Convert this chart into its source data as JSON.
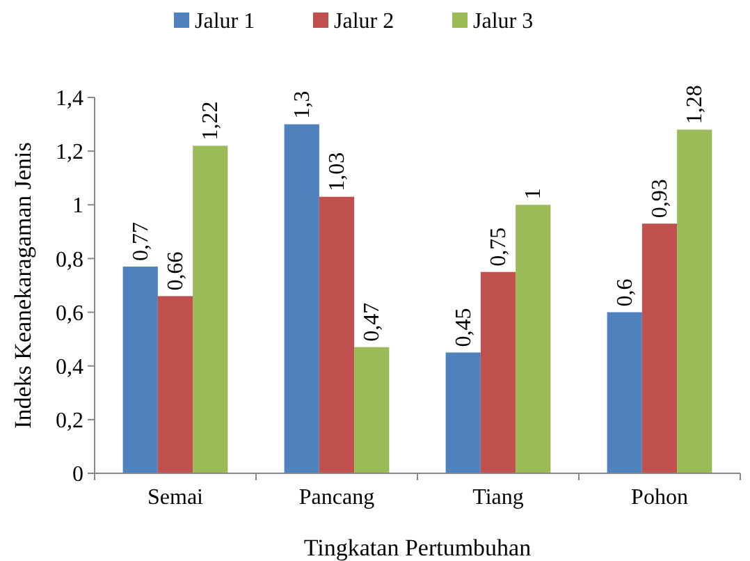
{
  "chart_data": {
    "type": "bar",
    "xlabel": "Tingkatan Pertumbuhan",
    "ylabel": "Indeks Keanekaragaman Jenis",
    "categories": [
      "Semai",
      "Pancang",
      "Tiang",
      "Pohon"
    ],
    "series": [
      {
        "name": "Jalur 1",
        "color": "#4f81bd",
        "values": [
          0.77,
          1.3,
          0.45,
          0.6
        ],
        "value_labels": [
          "0,77",
          "1,3",
          "0,45",
          "0,6"
        ]
      },
      {
        "name": "Jalur 2",
        "color": "#c0504d",
        "values": [
          0.66,
          1.03,
          0.75,
          0.93
        ],
        "value_labels": [
          "0,66",
          "1,03",
          "0,75",
          "0,93"
        ]
      },
      {
        "name": "Jalur 3",
        "color": "#9bbb59",
        "values": [
          1.22,
          0.47,
          1,
          1.28
        ],
        "value_labels": [
          "1,22",
          "0,47",
          "1",
          "1,28"
        ]
      }
    ],
    "ylim": [
      0,
      1.4
    ],
    "yticks": [
      0,
      {
        "value": 0.2,
        "label": "0,2"
      },
      {
        "value": 0.4,
        "label": "0,4"
      },
      {
        "value": 0.6,
        "label": "0,6"
      },
      {
        "value": 0.8,
        "label": "0,8"
      },
      1,
      {
        "value": 1.2,
        "label": "1,2"
      },
      {
        "value": 1.4,
        "label": "1,4"
      }
    ],
    "grid": false,
    "legend": "top"
  }
}
